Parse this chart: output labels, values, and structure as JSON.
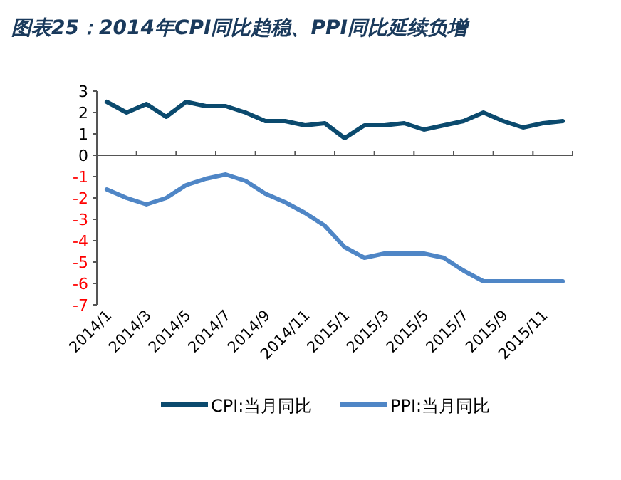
{
  "chart_data": {
    "type": "line",
    "title": "图表25：2014年CPI同比趋稳、PPI同比延续负增",
    "categories": [
      "2014/1",
      null,
      "2014/3",
      null,
      "2014/5",
      null,
      "2014/7",
      null,
      "2014/9",
      null,
      "2014/11",
      null,
      "2015/1",
      null,
      "2015/3",
      null,
      "2015/5",
      null,
      "2015/7",
      null,
      "2015/9",
      null,
      "2015/11",
      null
    ],
    "series": [
      {
        "name": "CPI:当月同比",
        "color": "#0b4a6e",
        "values": [
          2.5,
          2.0,
          2.4,
          1.8,
          2.5,
          2.3,
          2.3,
          2.0,
          1.6,
          1.6,
          1.4,
          1.5,
          0.8,
          1.4,
          1.4,
          1.5,
          1.2,
          1.4,
          1.6,
          2.0,
          1.6,
          1.3,
          1.5,
          1.6
        ]
      },
      {
        "name": "PPI:当月同比",
        "color": "#4f86c6",
        "values": [
          -1.6,
          -2.0,
          -2.3,
          -2.0,
          -1.4,
          -1.1,
          -0.9,
          -1.2,
          -1.8,
          -2.2,
          -2.7,
          -3.3,
          -4.3,
          -4.8,
          -4.6,
          -4.6,
          -4.6,
          -4.8,
          -5.4,
          -5.9,
          -5.9,
          -5.9,
          -5.9,
          -5.9
        ]
      }
    ],
    "ylim": [
      -7,
      3
    ],
    "yticks": [
      -7,
      -6,
      -5,
      -4,
      -3,
      -2,
      -1,
      0,
      1,
      2,
      3
    ],
    "legend": "bottom",
    "marker": "none",
    "line_style": "solid"
  }
}
